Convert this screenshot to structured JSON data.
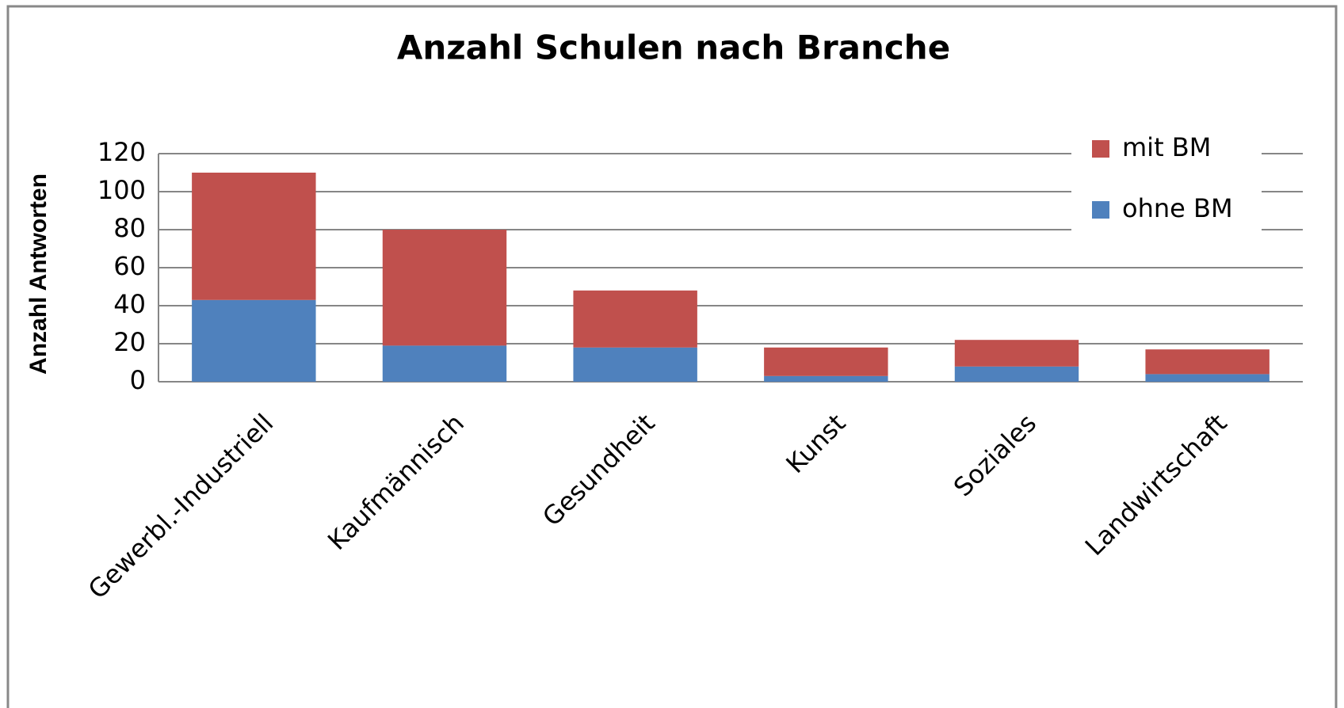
{
  "chart_data": {
    "type": "stacked_bar",
    "title": "Anzahl Schulen nach Branche",
    "y_label": "Anzahl Antworten",
    "categories": [
      "Gewerbl.-Industriell",
      "Kaufmännisch",
      "Gesundheit",
      "Kunst",
      "Soziales",
      "Landwirtschaft"
    ],
    "series": [
      {
        "name": "ohne BM",
        "color": "#4f81bd",
        "values": [
          43,
          19,
          18,
          3,
          8,
          4
        ]
      },
      {
        "name": "mit BM",
        "color": "#c0504d",
        "values": [
          67,
          61,
          30,
          15,
          14,
          13
        ]
      }
    ],
    "ylim": [
      0,
      120
    ],
    "yticks": [
      0,
      20,
      40,
      60,
      80,
      100,
      120
    ],
    "grid": true,
    "legend": "top-right"
  }
}
